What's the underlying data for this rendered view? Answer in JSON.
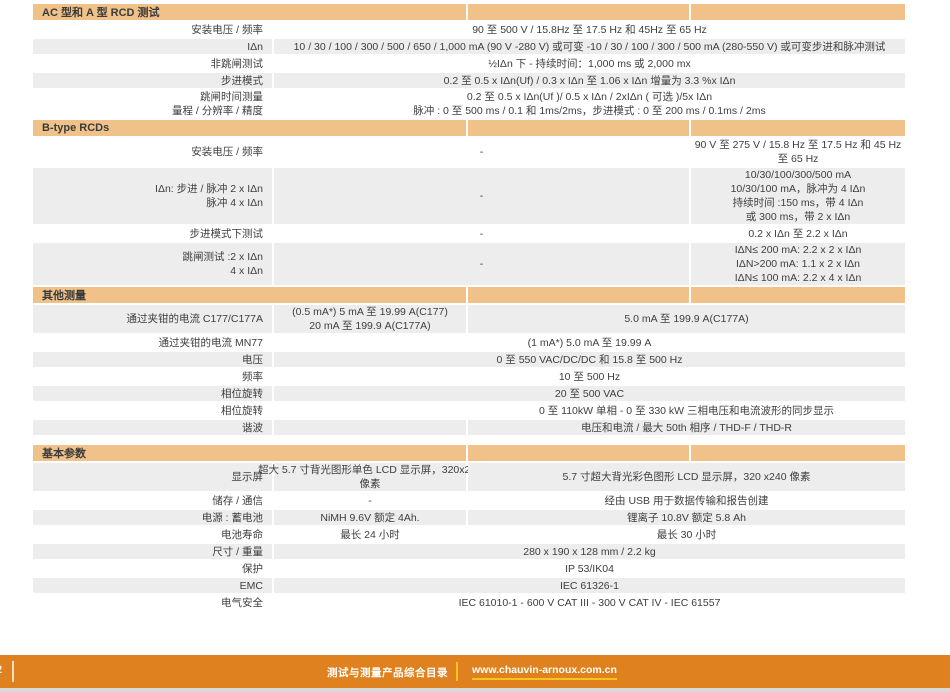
{
  "colors": {
    "headerBar": "#F0C28A",
    "zebra": "#EDEDED",
    "footerOrange": "#DE811E",
    "footerYellow": "#F6C41C",
    "bottomStrip": "#D9D9D9"
  },
  "sections": [
    {
      "title": "AC 型和 A 型 RCD 测试",
      "rows": [
        {
          "label": "安装电压 / 频率",
          "cells": [
            {
              "text": "90 至 500 V / 15.8Hz 至 17.5 Hz 和 45Hz 至 65 Hz"
            }
          ]
        },
        {
          "label": "IΔn",
          "cells": [
            {
              "text": "10 / 30 / 100 / 300 / 500 / 650 / 1,000 mA (90 V -280 V) 或可变 -10 / 30 / 100 / 300 / 500 mA (280-550 V) 或可变步进和脉冲测试"
            }
          ]
        },
        {
          "label": "非跳闸测试",
          "cells": [
            {
              "text": "½IΔn 下 - 持续时间：1,000 ms 或 2,000 mx"
            }
          ]
        },
        {
          "label": "步进模式",
          "cells": [
            {
              "text": "0.2 至 0.5 x IΔn(Uf) / 0.3 x IΔn 至 1.06 x IΔn 增量为 3.3 %x IΔn"
            }
          ]
        },
        {
          "label": "跳闸时间测量\n量程 / 分辨率 / 精度",
          "cells": [
            {
              "text": "0.2 至 0.5 x IΔn(Uf )/ 0.5 x IΔn / 2xIΔn ( 可选 )/5x IΔn\n脉冲 : 0 至 500 ms / 0.1 和 1ms/2ms，步进模式 : 0 至 200 ms / 0.1ms / 2ms"
            }
          ]
        }
      ]
    },
    {
      "title": "B-type RCDs",
      "rows": [
        {
          "label": "安装电压 / 频率",
          "cells": [
            {
              "text": "-"
            },
            {
              "text": "90 V 至 275 V / 15.8 Hz 至 17.5 Hz 和 45 Hz\n至 65 Hz"
            }
          ]
        },
        {
          "label": "IΔn: 步进 / 脉冲 2 x IΔn\n脉冲 4 x IΔn",
          "cells": [
            {
              "text": "-"
            },
            {
              "text": "10/30/100/300/500 mA\n10/30/100 mA，脉冲为 4 IΔn\n持续时间 :150 ms，带 4 IΔn\n或 300 ms，带 2 x IΔn"
            }
          ]
        },
        {
          "label": "步进模式下测试",
          "cells": [
            {
              "text": "-"
            },
            {
              "text": "0.2 x IΔn 至 2.2 x IΔn"
            }
          ]
        },
        {
          "label": "跳闸测试 :2 x IΔn\n4 x IΔn",
          "cells": [
            {
              "text": "-"
            },
            {
              "text": "IΔN≤ 200 mA: 2.2 x 2 x IΔn\nIΔN>200 mA: 1.1 x 2 x IΔn\nIΔN≤ 100 mA: 2.2 x 4 x IΔn"
            }
          ]
        }
      ]
    },
    {
      "title": "其他测量",
      "rows": [
        {
          "label": "通过夹钳的电流 C177/C177A",
          "cells": [
            {
              "text": "(0.5 mA*) 5 mA 至 19.99 A(C177)\n20 mA 至 199.9 A(C177A)"
            },
            {
              "text": "5.0 mA 至 199.9 A(C177A)"
            }
          ]
        },
        {
          "label": "通过夹钳的电流 MN77",
          "cells": [
            {
              "text": "(1 mA*) 5.0 mA 至 19.99 A"
            }
          ]
        },
        {
          "label": "电压",
          "cells": [
            {
              "text": "0 至 550 VAC/DC/DC 和 15.8 至 500 Hz"
            }
          ]
        },
        {
          "label": "频率",
          "cells": [
            {
              "text": "10 至 500 Hz"
            }
          ]
        },
        {
          "label": "相位旋转",
          "cells": [
            {
              "text": "20 至 500 VAC"
            }
          ]
        },
        {
          "label": "相位旋转",
          "cells": [
            {
              "text": ""
            },
            {
              "text": "0 至 110kW 单相 - 0 至 330 kW 三相电压和电流波形的同步显示"
            }
          ]
        },
        {
          "label": "谐波",
          "cells": [
            {
              "text": ""
            },
            {
              "text": "电压和电流 / 最大 50th 相序 / THD-F / THD-R"
            }
          ]
        }
      ]
    },
    {
      "title": "基本参数",
      "rows": [
        {
          "label": "显示屏",
          "cells": [
            {
              "text": "超大 5.7 寸背光图形单色 LCD 显示屏，320x240\n像素"
            },
            {
              "text": "5.7 寸超大背光彩色图形 LCD 显示屏，320 x240 像素"
            }
          ]
        },
        {
          "label": "储存 / 通信",
          "cells": [
            {
              "text": "-"
            },
            {
              "text": "经由 USB 用于数据传输和报告创建"
            }
          ]
        },
        {
          "label": "电源 : 蓄电池",
          "cells": [
            {
              "text": "NiMH 9.6V 额定 4Ah."
            },
            {
              "text": "锂离子 10.8V 额定 5.8 Ah"
            }
          ]
        },
        {
          "label": "电池寿命",
          "cells": [
            {
              "text": "最长 24 小时"
            },
            {
              "text": "最长 30 小时"
            }
          ]
        },
        {
          "label": "尺寸 / 重量",
          "cells": [
            {
              "text": "280 x 190 x 128 mm / 2.2 kg"
            }
          ]
        },
        {
          "label": "保护",
          "cells": [
            {
              "text": "IP 53/IK04"
            }
          ]
        },
        {
          "label": "EMC",
          "cells": [
            {
              "text": "IEC 61326-1"
            }
          ]
        },
        {
          "label": "电气安全",
          "cells": [
            {
              "text": "IEC 61010-1 - 600 V CAT III - 300 V CAT IV - IEC 61557"
            }
          ]
        }
      ]
    }
  ],
  "footer": {
    "page_fragment": "2",
    "catalog_title": "测试与测量产品综合目录",
    "website": "www.chauvin-arnoux.com.cn"
  }
}
